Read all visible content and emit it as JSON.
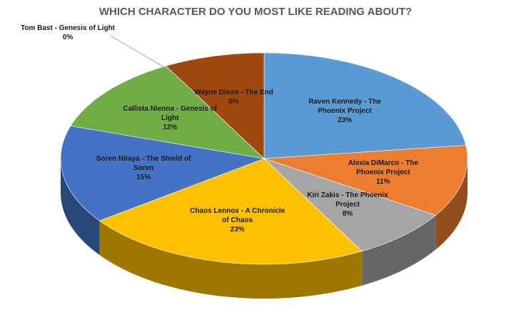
{
  "chart_data": {
    "type": "pie3d",
    "title": "WHICH CHARACTER DO YOU MOST LIKE READING ABOUT?",
    "categories": [
      "Raven Kennedy - The Phoenix Project",
      "Alexia DiMarco - The Phoenix Project",
      "Kiri Zakis - The Phoenix Project",
      "Chaos Lennox - A Chronicle of Chaos",
      "Soren Nitaya - The Shield of Soren",
      "Callista Nienna - Genesis of Light",
      "Tom Bast - Genesis of Light",
      "Wayne Dixon - The End"
    ],
    "values": [
      23,
      11,
      8,
      23,
      15,
      12,
      0,
      8
    ],
    "value_labels": [
      "23%",
      "11%",
      "8%",
      "23%",
      "15%",
      "12%",
      "0%",
      "8%"
    ],
    "colors": [
      "#5b9bd5",
      "#ed7d31",
      "#a5a5a5",
      "#ffc000",
      "#4472c4",
      "#70ad47",
      "#264478",
      "#9e480e"
    ]
  }
}
